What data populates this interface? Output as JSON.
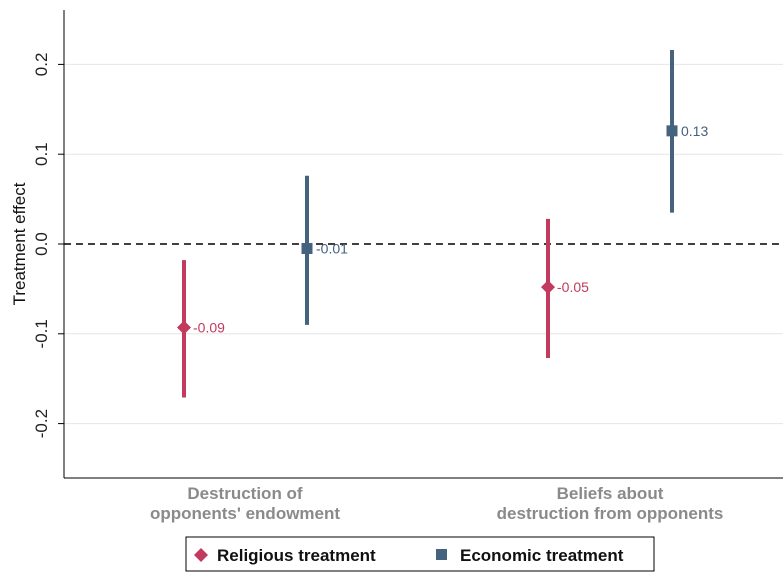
{
  "chart_data": {
    "type": "scatter",
    "ylabel": "Treatment effect",
    "ylim": [
      -0.26,
      0.26
    ],
    "yticks": [
      0.2,
      0.1,
      0.0,
      -0.1,
      -0.2
    ],
    "ytick_labels": [
      "0.2",
      "0.1",
      "0.0",
      "-0.1",
      "-0.2"
    ],
    "reference_line": 0.0,
    "categories": [
      [
        "Destruction of",
        "opponents' endowment"
      ],
      [
        "Beliefs about",
        "destruction from opponents"
      ]
    ],
    "series": [
      {
        "name": "Religious treatment",
        "marker": "diamond",
        "color": "#c23a5e",
        "values": [
          -0.093,
          -0.048
        ],
        "ci_low": [
          -0.171,
          -0.127
        ],
        "ci_high": [
          -0.018,
          0.028
        ],
        "labels": [
          "-0.09",
          "-0.05"
        ]
      },
      {
        "name": "Economic treatment",
        "marker": "square",
        "color": "#45627f",
        "values": [
          -0.005,
          0.126
        ],
        "ci_low": [
          -0.09,
          0.035
        ],
        "ci_high": [
          0.076,
          0.216
        ],
        "labels": [
          "-0.01",
          "0.13"
        ]
      }
    ],
    "grid": true,
    "legend_position": "bottom"
  }
}
